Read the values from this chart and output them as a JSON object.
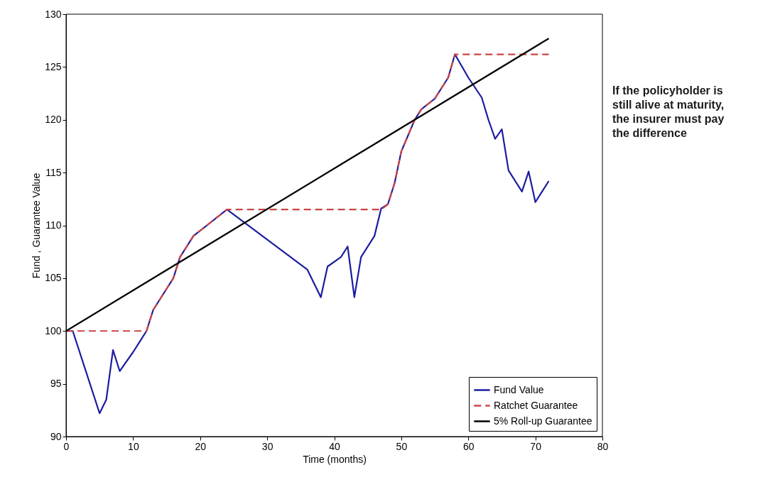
{
  "chart_data": {
    "type": "line",
    "xlabel": "Time (months)",
    "ylabel": "Fund , Guarantee Value",
    "xlim": [
      0,
      80
    ],
    "xticks": [
      0,
      10,
      20,
      30,
      40,
      50,
      60,
      70,
      80
    ],
    "ylim": [
      90,
      130
    ],
    "yticks": [
      90,
      95,
      100,
      105,
      110,
      115,
      120,
      125,
      130
    ],
    "grid": false,
    "legend": "bottom right",
    "marker": "none",
    "series": [
      {
        "name": "Fund Value",
        "color": "#1c1ca0",
        "line_style": "solid",
        "x": [
          0,
          1,
          5,
          6,
          7,
          8,
          10,
          11,
          12,
          13,
          15,
          16,
          17,
          19,
          21,
          24,
          36,
          38,
          39,
          41,
          42,
          43,
          44,
          46,
          47,
          48,
          49,
          50,
          52,
          53,
          55,
          57,
          58,
          60,
          62,
          63,
          64,
          65,
          66,
          68,
          69,
          70,
          72
        ],
        "values": [
          100,
          100,
          92.2,
          93.5,
          98.2,
          96.2,
          98,
          99,
          100,
          102,
          104,
          105,
          107,
          109,
          110,
          111.5,
          105.8,
          103.2,
          106.1,
          107,
          108,
          103.2,
          107,
          109,
          111.6,
          112,
          114,
          117,
          120,
          121,
          122,
          124,
          126.2,
          124,
          122.1,
          120,
          118.2,
          119.1,
          115.2,
          113.2,
          115.1,
          112.2,
          114.2
        ]
      },
      {
        "name": "Ratchet Guarantee",
        "color": "#cc4444",
        "line_style": "dashed",
        "x": [
          0,
          12,
          13,
          15,
          16,
          17,
          19,
          21,
          24,
          47,
          48,
          49,
          50,
          52,
          53,
          55,
          57,
          58,
          72
        ],
        "values": [
          100,
          100,
          102,
          104,
          105,
          107,
          109,
          110,
          111.5,
          111.5,
          112,
          114,
          117,
          120,
          121,
          122,
          124,
          126.2,
          126.2
        ]
      },
      {
        "name": "5% Roll-up Guarantee",
        "color": "#000000",
        "line_style": "solid",
        "x": [
          0,
          72
        ],
        "values": [
          100,
          127.7
        ]
      }
    ],
    "annotations": [
      "If the policyholder is\nstill alive at maturity,\nthe insurer must pay\nthe difference"
    ]
  }
}
